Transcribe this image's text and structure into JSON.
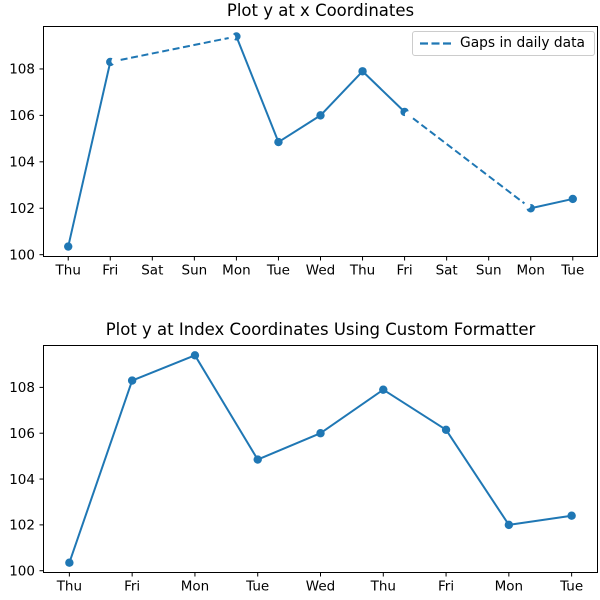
{
  "figure": {
    "background": "#ffffff",
    "accent_color": "#1f77b4",
    "axis_color": "#000000"
  },
  "chart_data": [
    {
      "type": "line",
      "title": "Plot y at x Coordinates",
      "xlabel": "",
      "ylabel": "",
      "x_tick_labels": [
        "Thu",
        "Fri",
        "Sat",
        "Sun",
        "Mon",
        "Tue",
        "Wed",
        "Thu",
        "Fri",
        "Sat",
        "Sun",
        "Mon",
        "Tue"
      ],
      "x_day_offsets": [
        0,
        1,
        4,
        5,
        6,
        7,
        8,
        11,
        12
      ],
      "y_values": [
        100.35,
        108.3,
        109.4,
        104.85,
        106.0,
        107.9,
        106.15,
        102.0,
        102.4
      ],
      "y_ticks": [
        100,
        102,
        104,
        106,
        108
      ],
      "xlim": [
        -0.6,
        12.6
      ],
      "ylim": [
        99.9,
        109.85
      ],
      "grid": false,
      "line_color": "#1f77b4",
      "marker": "o",
      "gap_style": "dashed",
      "legend": {
        "label": "Gaps in daily data",
        "position": "upper-right",
        "line_style": "dashed"
      }
    },
    {
      "type": "line",
      "title": "Plot y at Index Coordinates Using Custom Formatter",
      "xlabel": "",
      "ylabel": "",
      "x_tick_labels": [
        "Thu",
        "Fri",
        "Mon",
        "Tue",
        "Wed",
        "Thu",
        "Fri",
        "Mon",
        "Tue"
      ],
      "x_index": [
        0,
        1,
        2,
        3,
        4,
        5,
        6,
        7,
        8
      ],
      "y_values": [
        100.35,
        108.3,
        109.4,
        104.85,
        106.0,
        107.9,
        106.15,
        102.0,
        102.4
      ],
      "y_ticks": [
        100,
        102,
        104,
        106,
        108
      ],
      "xlim": [
        -0.42,
        8.42
      ],
      "ylim": [
        99.9,
        109.85
      ],
      "grid": false,
      "line_color": "#1f77b4",
      "marker": "o"
    }
  ]
}
